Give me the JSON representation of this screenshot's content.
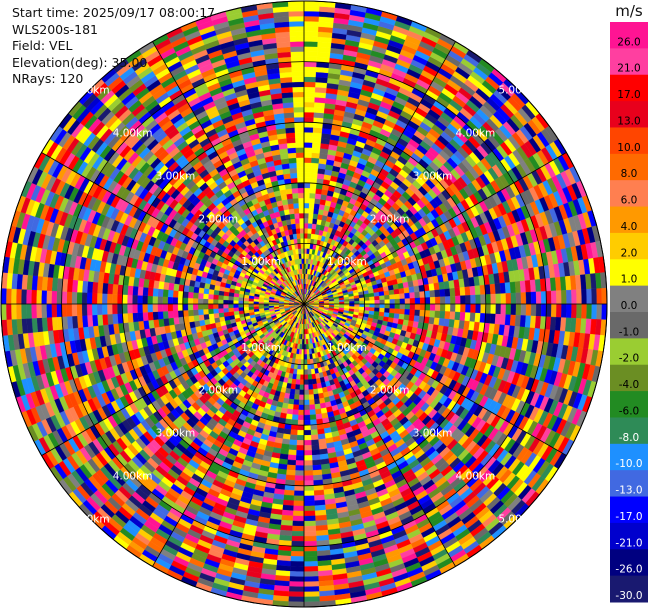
{
  "info": {
    "start_time": "Start time: 2025/09/17 08:00:17",
    "station": "WLS200s-181",
    "field": "Field: VEL",
    "elevation": "Elevation(deg): 35.00",
    "nrays": "NRays: 120"
  },
  "chart_data": {
    "type": "heatmap",
    "subtype": "polar-ppi",
    "n_rays": 120,
    "field": "VEL",
    "range_rings_km": [
      1.0,
      2.0,
      3.0,
      4.0,
      5.0
    ],
    "ring_labels": [
      "1.00km",
      "2.00km",
      "3.00km",
      "4.00km",
      "5.00km"
    ],
    "spokes_deg": [
      0,
      30,
      60,
      90,
      120,
      150,
      180,
      210,
      240,
      270,
      300,
      330
    ],
    "colorbar": {
      "unit": "m/s",
      "ticks": [
        "26.0",
        "21.0",
        "17.0",
        "13.0",
        "10.0",
        "8.0",
        "6.0",
        "4.0",
        "2.0",
        "1.0",
        "0.0",
        "-1.0",
        "-2.0",
        "-4.0",
        "-6.0",
        "-8.0",
        "-10.0",
        "-13.0",
        "-17.0",
        "-21.0",
        "-26.0",
        "-30.0"
      ],
      "colors": [
        "#ff1493",
        "#ff3fa0",
        "#ff0000",
        "#e8001c",
        "#ff4500",
        "#ff6a00",
        "#ff7f50",
        "#ff9900",
        "#ffcc00",
        "#ffff00",
        "#808080",
        "#696969",
        "#9acd32",
        "#6b8e23",
        "#228b22",
        "#2e8b57",
        "#1e90ff",
        "#4169e1",
        "#0000ff",
        "#0000cd",
        "#000080",
        "#191970"
      ]
    }
  }
}
